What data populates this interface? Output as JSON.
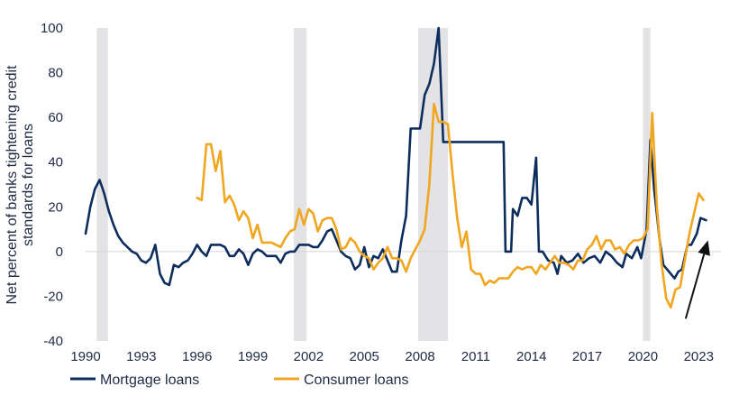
{
  "chart_data": {
    "type": "line",
    "ylabel": "Net percent of banks tightening credit standards for loans",
    "ylabel_lines": [
      "Net percent of banks tightening credit",
      "standards for loans"
    ],
    "xlabel": "",
    "xlim": [
      1990,
      2024.2
    ],
    "ylim": [
      -40,
      100
    ],
    "x_ticks": [
      1990,
      1993,
      1996,
      1999,
      2002,
      2005,
      2008,
      2011,
      2014,
      2017,
      2020,
      2023
    ],
    "x_tick_labels": [
      "1990",
      "1993",
      "1996",
      "1999",
      "2002",
      "2005",
      "2008",
      "2011",
      "2014",
      "2017",
      "2020",
      "2023"
    ],
    "y_ticks": [
      -40,
      -20,
      0,
      20,
      40,
      60,
      80,
      100
    ],
    "y_tick_labels": [
      "-40",
      "-20",
      "0",
      "20",
      "40",
      "60",
      "80",
      "100"
    ],
    "recessions": [
      [
        1990.6,
        1991.2
      ],
      [
        2001.2,
        2001.9
      ],
      [
        2007.9,
        2009.5
      ],
      [
        2020.0,
        2020.4
      ]
    ],
    "legend_position": "bottom-left",
    "series": [
      {
        "name": "Mortgage loans",
        "color": "#0d2d5c",
        "points": [
          [
            1990.0,
            8
          ],
          [
            1990.25,
            20
          ],
          [
            1990.5,
            28
          ],
          [
            1990.75,
            32
          ],
          [
            1991.0,
            26
          ],
          [
            1991.25,
            18
          ],
          [
            1991.5,
            12
          ],
          [
            1991.75,
            7
          ],
          [
            1992.0,
            4
          ],
          [
            1992.25,
            2
          ],
          [
            1992.5,
            0
          ],
          [
            1992.75,
            -1
          ],
          [
            1993.0,
            -4
          ],
          [
            1993.25,
            -5
          ],
          [
            1993.5,
            -3
          ],
          [
            1993.75,
            3
          ],
          [
            1994.0,
            -10
          ],
          [
            1994.25,
            -14
          ],
          [
            1994.5,
            -15
          ],
          [
            1994.75,
            -6
          ],
          [
            1995.0,
            -7
          ],
          [
            1995.25,
            -5
          ],
          [
            1995.5,
            -4
          ],
          [
            1995.75,
            -1
          ],
          [
            1996.0,
            3
          ],
          [
            1996.25,
            0
          ],
          [
            1996.5,
            -2
          ],
          [
            1996.75,
            3
          ],
          [
            1997.0,
            3
          ],
          [
            1997.25,
            3
          ],
          [
            1997.5,
            2
          ],
          [
            1997.75,
            -2
          ],
          [
            1998.0,
            -2
          ],
          [
            1998.25,
            1
          ],
          [
            1998.5,
            -1
          ],
          [
            1998.75,
            -6
          ],
          [
            1999.0,
            -1
          ],
          [
            1999.25,
            1
          ],
          [
            1999.5,
            0
          ],
          [
            1999.75,
            -2
          ],
          [
            2000.0,
            -2
          ],
          [
            2000.25,
            -2
          ],
          [
            2000.5,
            -5
          ],
          [
            2000.75,
            -1
          ],
          [
            2001.0,
            0
          ],
          [
            2001.25,
            0
          ],
          [
            2001.5,
            3
          ],
          [
            2001.75,
            3
          ],
          [
            2002.0,
            3
          ],
          [
            2002.25,
            2
          ],
          [
            2002.5,
            2
          ],
          [
            2002.75,
            5
          ],
          [
            2003.0,
            9
          ],
          [
            2003.25,
            10
          ],
          [
            2003.5,
            5
          ],
          [
            2003.75,
            0
          ],
          [
            2004.0,
            -2
          ],
          [
            2004.25,
            -3
          ],
          [
            2004.5,
            -8
          ],
          [
            2004.75,
            -6
          ],
          [
            2005.0,
            2
          ],
          [
            2005.25,
            -7
          ],
          [
            2005.5,
            -2
          ],
          [
            2005.75,
            -3
          ],
          [
            2006.0,
            1
          ],
          [
            2006.25,
            -4
          ],
          [
            2006.5,
            -9
          ],
          [
            2006.75,
            -9
          ],
          [
            2007.0,
            5
          ],
          [
            2007.25,
            16
          ],
          [
            2007.5,
            55
          ],
          [
            2007.75,
            55
          ],
          [
            2008.0,
            55
          ],
          [
            2008.25,
            70
          ],
          [
            2008.5,
            75
          ],
          [
            2008.75,
            84
          ],
          [
            2009.0,
            100
          ],
          [
            2009.25,
            49
          ],
          [
            2009.5,
            49
          ],
          [
            2010.0,
            49
          ],
          [
            2011.0,
            49
          ],
          [
            2012.0,
            49
          ],
          [
            2012.5,
            49
          ],
          [
            2012.6,
            0
          ],
          [
            2012.9,
            0
          ],
          [
            2013.0,
            19
          ],
          [
            2013.25,
            16
          ],
          [
            2013.5,
            24
          ],
          [
            2013.75,
            24
          ],
          [
            2014.0,
            21
          ],
          [
            2014.25,
            42
          ],
          [
            2014.4,
            0
          ],
          [
            2014.6,
            0
          ],
          [
            2014.9,
            -4
          ],
          [
            2015.2,
            -5
          ],
          [
            2015.4,
            -10
          ],
          [
            2015.6,
            -2
          ],
          [
            2015.9,
            -5
          ],
          [
            2016.2,
            -4
          ],
          [
            2016.5,
            -1
          ],
          [
            2016.8,
            -5
          ],
          [
            2017.1,
            -3
          ],
          [
            2017.4,
            -2
          ],
          [
            2017.7,
            -5
          ],
          [
            2018.0,
            0
          ],
          [
            2018.3,
            -2
          ],
          [
            2018.6,
            -5
          ],
          [
            2018.9,
            -7
          ],
          [
            2019.1,
            -1
          ],
          [
            2019.4,
            -3
          ],
          [
            2019.7,
            2
          ],
          [
            2019.9,
            -3
          ],
          [
            2020.2,
            10
          ],
          [
            2020.4,
            50
          ],
          [
            2020.6,
            28
          ],
          [
            2020.9,
            5
          ],
          [
            2021.1,
            -6
          ],
          [
            2021.4,
            -9
          ],
          [
            2021.7,
            -12
          ],
          [
            2021.9,
            -9
          ],
          [
            2022.1,
            -8
          ],
          [
            2022.4,
            3
          ],
          [
            2022.6,
            3
          ],
          [
            2022.9,
            8
          ],
          [
            2023.1,
            15
          ],
          [
            2023.4,
            14
          ]
        ]
      },
      {
        "name": "Consumer loans",
        "color": "#f0a61e",
        "points": [
          [
            1996.0,
            24
          ],
          [
            1996.25,
            23
          ],
          [
            1996.5,
            48
          ],
          [
            1996.75,
            48
          ],
          [
            1997.0,
            36
          ],
          [
            1997.25,
            45
          ],
          [
            1997.5,
            22
          ],
          [
            1997.75,
            25
          ],
          [
            1998.0,
            21
          ],
          [
            1998.25,
            14
          ],
          [
            1998.5,
            18
          ],
          [
            1998.75,
            15
          ],
          [
            1999.0,
            6
          ],
          [
            1999.25,
            12
          ],
          [
            1999.5,
            4
          ],
          [
            1999.75,
            4
          ],
          [
            2000.0,
            4
          ],
          [
            2000.25,
            3
          ],
          [
            2000.5,
            2
          ],
          [
            2000.75,
            6
          ],
          [
            2001.0,
            9
          ],
          [
            2001.25,
            10
          ],
          [
            2001.5,
            19
          ],
          [
            2001.75,
            12
          ],
          [
            2002.0,
            19
          ],
          [
            2002.25,
            17
          ],
          [
            2002.5,
            9
          ],
          [
            2002.75,
            14
          ],
          [
            2003.0,
            15
          ],
          [
            2003.25,
            15
          ],
          [
            2003.5,
            10
          ],
          [
            2003.75,
            1
          ],
          [
            2004.0,
            2
          ],
          [
            2004.25,
            6
          ],
          [
            2004.5,
            4
          ],
          [
            2004.75,
            0
          ],
          [
            2005.0,
            -2
          ],
          [
            2005.25,
            -3
          ],
          [
            2005.5,
            -8
          ],
          [
            2005.75,
            -5
          ],
          [
            2006.0,
            -3
          ],
          [
            2006.25,
            2
          ],
          [
            2006.5,
            -3
          ],
          [
            2006.75,
            -3
          ],
          [
            2007.0,
            -4
          ],
          [
            2007.25,
            -9
          ],
          [
            2007.5,
            -3
          ],
          [
            2007.75,
            1
          ],
          [
            2008.0,
            5
          ],
          [
            2008.25,
            10
          ],
          [
            2008.5,
            30
          ],
          [
            2008.75,
            66
          ],
          [
            2009.0,
            58
          ],
          [
            2009.25,
            58
          ],
          [
            2009.5,
            57
          ],
          [
            2009.75,
            35
          ],
          [
            2010.0,
            15
          ],
          [
            2010.25,
            2
          ],
          [
            2010.5,
            9
          ],
          [
            2010.75,
            -8
          ],
          [
            2011.0,
            -10
          ],
          [
            2011.25,
            -10
          ],
          [
            2011.5,
            -15
          ],
          [
            2011.75,
            -13
          ],
          [
            2012.0,
            -14
          ],
          [
            2012.25,
            -12
          ],
          [
            2012.5,
            -12
          ],
          [
            2012.75,
            -12
          ],
          [
            2013.0,
            -9
          ],
          [
            2013.25,
            -7
          ],
          [
            2013.5,
            -8
          ],
          [
            2013.75,
            -7
          ],
          [
            2014.0,
            -7
          ],
          [
            2014.25,
            -10
          ],
          [
            2014.5,
            -6
          ],
          [
            2014.75,
            -8
          ],
          [
            2015.0,
            -5
          ],
          [
            2015.25,
            -2
          ],
          [
            2015.5,
            -5
          ],
          [
            2015.75,
            -5
          ],
          [
            2016.0,
            -6
          ],
          [
            2016.25,
            -8
          ],
          [
            2016.5,
            -4
          ],
          [
            2016.75,
            -4
          ],
          [
            2017.0,
            1
          ],
          [
            2017.25,
            3
          ],
          [
            2017.5,
            7
          ],
          [
            2017.75,
            1
          ],
          [
            2018.0,
            5
          ],
          [
            2018.25,
            5
          ],
          [
            2018.5,
            1
          ],
          [
            2018.75,
            2
          ],
          [
            2019.0,
            -1
          ],
          [
            2019.25,
            3
          ],
          [
            2019.5,
            5
          ],
          [
            2019.75,
            5
          ],
          [
            2020.0,
            6
          ],
          [
            2020.25,
            10
          ],
          [
            2020.5,
            62
          ],
          [
            2020.75,
            20
          ],
          [
            2021.0,
            -5
          ],
          [
            2021.25,
            -21
          ],
          [
            2021.5,
            -25
          ],
          [
            2021.75,
            -17
          ],
          [
            2022.0,
            -16
          ],
          [
            2022.25,
            -4
          ],
          [
            2022.5,
            8
          ],
          [
            2022.75,
            17
          ],
          [
            2023.0,
            26
          ],
          [
            2023.25,
            23
          ]
        ]
      }
    ],
    "annotations": [
      {
        "type": "arrow",
        "from": [
          2022.3,
          -30
        ],
        "to": [
          2023.5,
          5
        ],
        "color": "#111111"
      }
    ]
  }
}
